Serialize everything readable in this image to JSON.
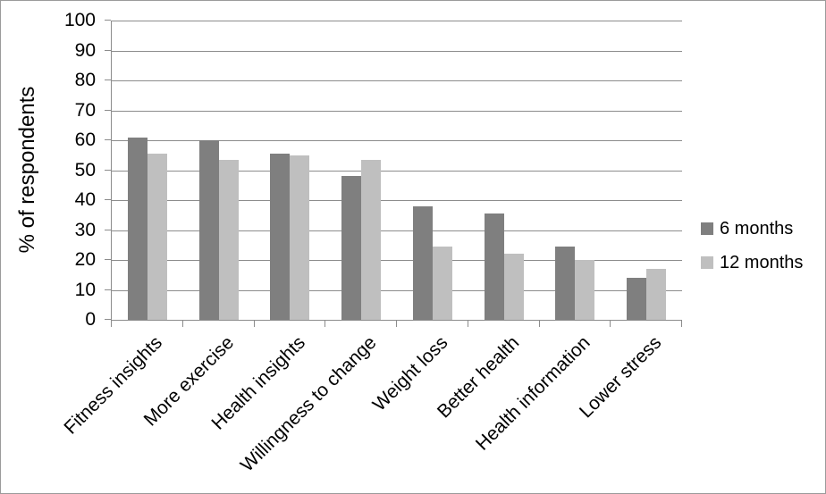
{
  "chart_data": {
    "type": "bar",
    "title": "",
    "xlabel": "",
    "ylabel": "% of respondents",
    "ylim": [
      0,
      100
    ],
    "yticks": [
      0,
      10,
      20,
      30,
      40,
      50,
      60,
      70,
      80,
      90,
      100
    ],
    "grid": true,
    "legend_position": "right",
    "categories": [
      "Fitness insights",
      "More exercise",
      "Health insights",
      "Willingness to change",
      "Weight loss",
      "Better health",
      "Health information",
      "Lower stress"
    ],
    "series": [
      {
        "name": "6 months",
        "color": "#7f7f7f",
        "values": [
          61,
          60,
          55.5,
          48,
          38,
          35.5,
          24.5,
          14
        ]
      },
      {
        "name": "12 months",
        "color": "#bfbfbf",
        "values": [
          55.5,
          53.5,
          55,
          53.5,
          24.5,
          22,
          20,
          17
        ]
      }
    ]
  },
  "colors": {
    "background": "#ffffff",
    "border": "#9b9b9b",
    "gridline": "#8c8c8c",
    "axis": "#8c8c8c",
    "text": "#000000"
  }
}
